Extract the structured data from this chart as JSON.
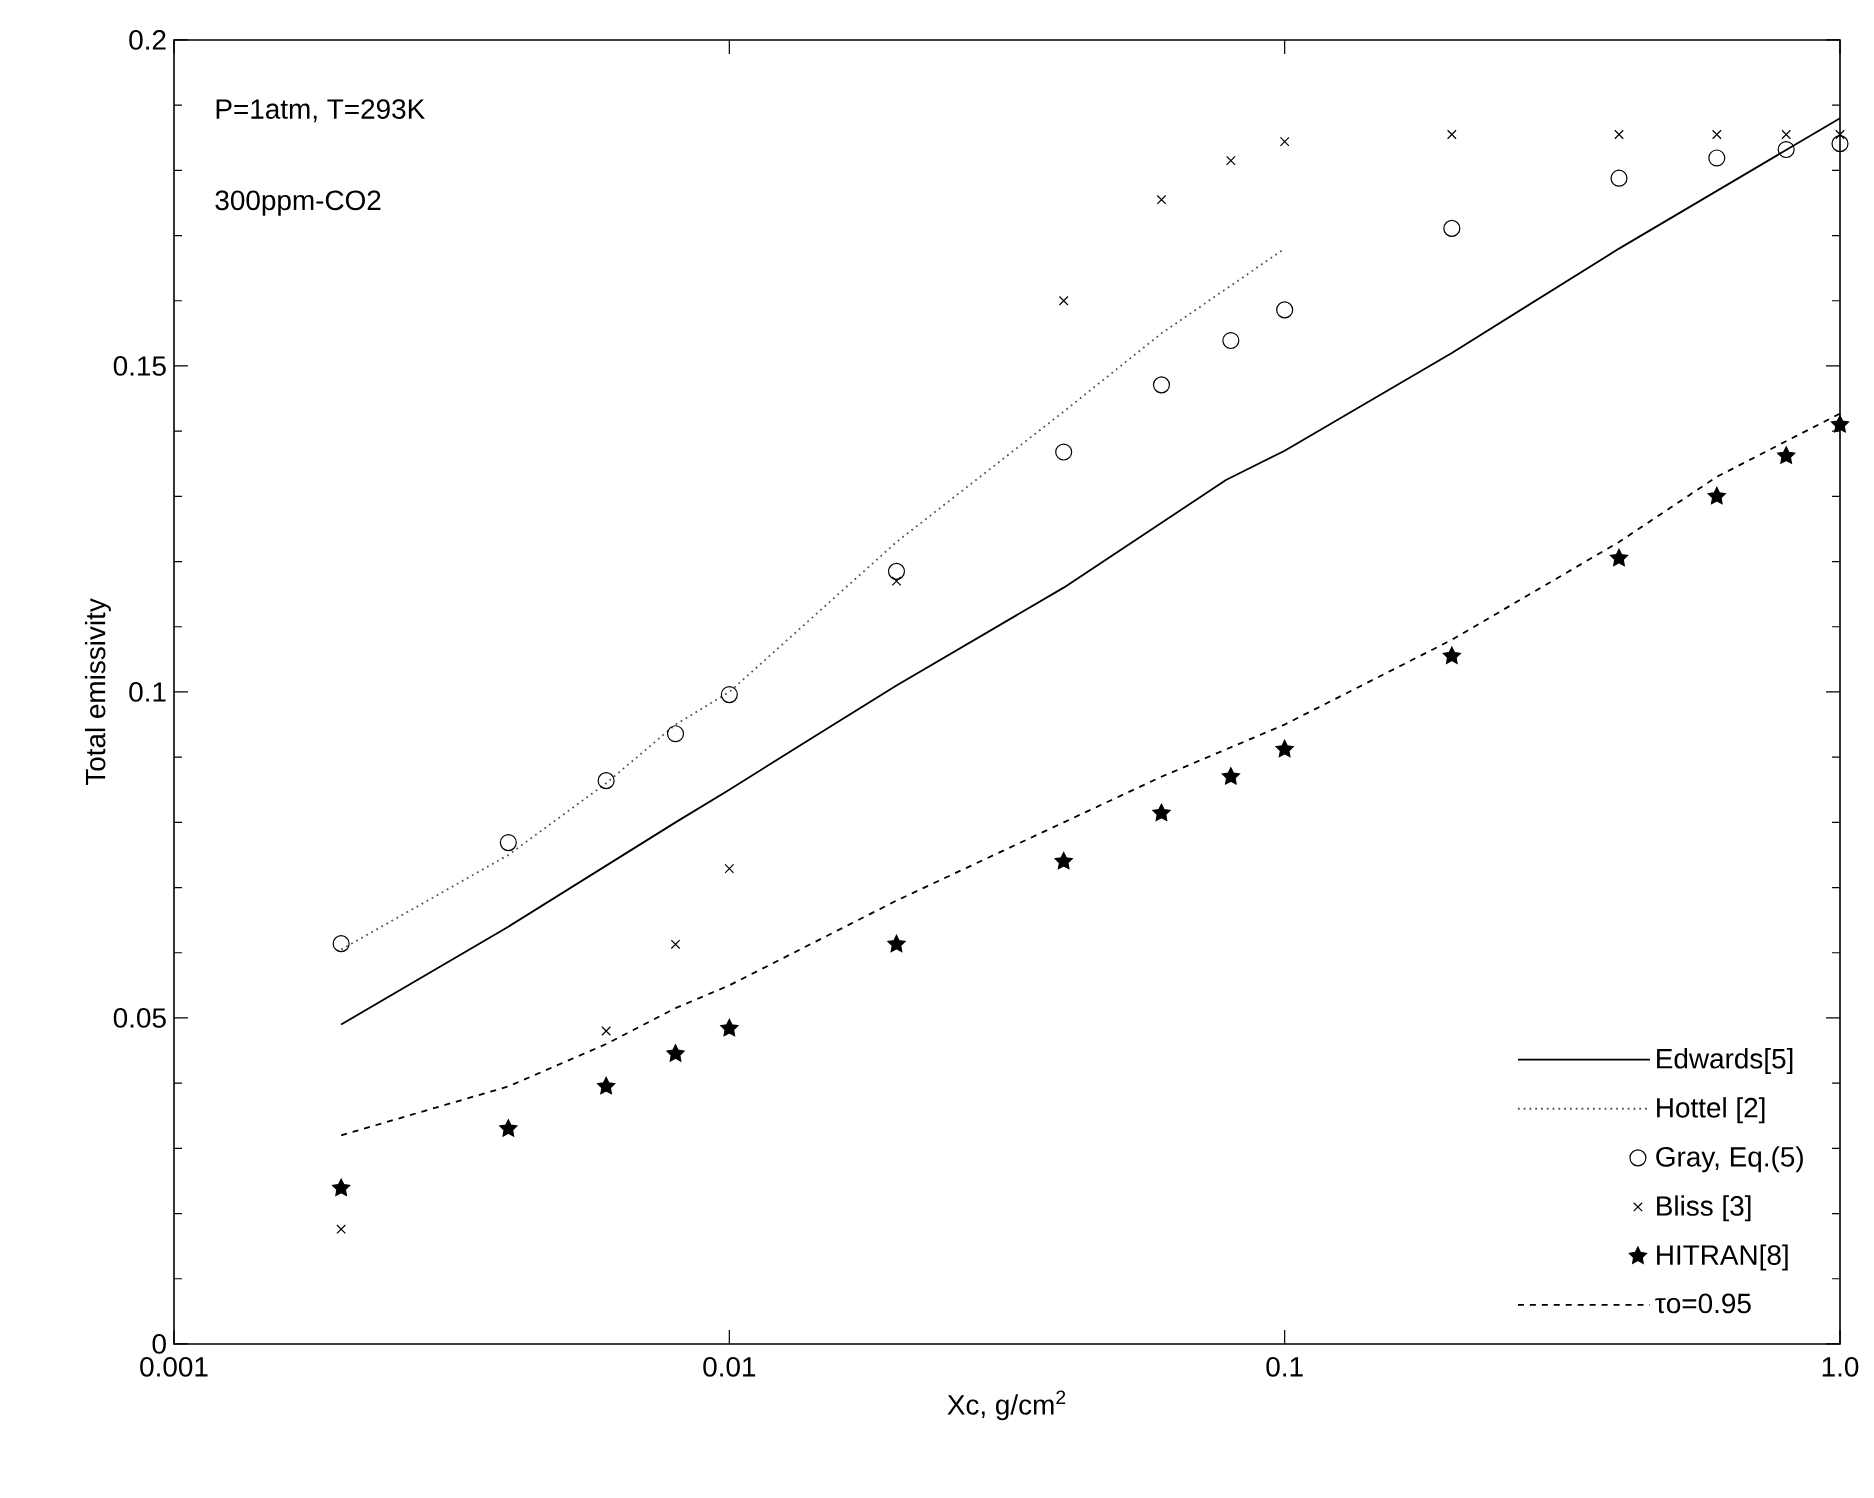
{
  "chart_data": {
    "type": "line",
    "xlabel": "Xc, g/cm$^{2}$",
    "ylabel": "Total emissivity",
    "log": "x",
    "xlim": [
      0.001,
      1
    ],
    "ylim": [
      0,
      0.2
    ],
    "xticks": [
      0.001,
      0.01,
      0.1,
      {
        "value": 1,
        "label": "1.0"
      }
    ],
    "yticks": [
      0,
      0.05,
      0.1,
      0.15,
      0.2
    ],
    "grid": false,
    "legend": "bottom right",
    "annotations": [
      "P=1atm, T=293K",
      "300ppm-CO2"
    ],
    "series": [
      {
        "name": "Edwards[5]",
        "color": "#000000",
        "line_style": "solid",
        "x": [
          0.002,
          0.004,
          0.008,
          0.01,
          0.0134,
          0.02,
          0.04,
          0.0784,
          0.1,
          0.2,
          0.4,
          1
        ],
        "values": [
          0.049,
          0.064,
          0.08,
          0.085,
          0.0918,
          0.101,
          0.116,
          0.1325,
          0.137,
          0.152,
          0.168,
          0.188
        ]
      },
      {
        "name": "Hottel [2]",
        "color": "#555555",
        "line_style": "dotted",
        "x": [
          0.002,
          0.004,
          0.006,
          0.008,
          0.01,
          0.02,
          0.04,
          0.06,
          0.1
        ],
        "values": [
          0.0605,
          0.075,
          0.086,
          0.095,
          0.1,
          0.123,
          0.143,
          0.155,
          0.168
        ]
      },
      {
        "name": "Gray, Eq.(5)",
        "type": "scatter",
        "color": "#000000",
        "marker": "circle",
        "x": [
          0.002,
          0.004,
          0.006,
          0.008,
          0.01,
          0.02,
          0.04,
          0.06,
          0.08,
          0.1,
          0.2,
          0.4,
          0.6,
          0.8,
          1
        ],
        "values": [
          0.0614,
          0.0769,
          0.0864,
          0.0936,
          0.0996,
          0.1185,
          0.1368,
          0.1471,
          0.1539,
          0.1586,
          0.1711,
          0.1788,
          0.1819,
          0.1832,
          0.1841
        ]
      },
      {
        "name": "Bliss [3]",
        "type": "scatter",
        "color": "#000000",
        "marker": "cross",
        "x": [
          0.002,
          0.006,
          0.008,
          0.01,
          0.02,
          0.04,
          0.06,
          0.08,
          0.1,
          0.2,
          0.4,
          0.6,
          0.8,
          1
        ],
        "values": [
          0.0176,
          0.048,
          0.0613,
          0.0729,
          0.117,
          0.16,
          0.1755,
          0.1815,
          0.1844,
          0.1855,
          0.1855,
          0.1855,
          0.1855,
          0.1855
        ]
      },
      {
        "name": "HITRAN[8]",
        "type": "scatter",
        "color": "#000000",
        "marker": "star",
        "x": [
          0.002,
          0.004,
          0.006,
          0.008,
          0.01,
          0.02,
          0.04,
          0.06,
          0.08,
          0.1,
          0.2,
          0.4,
          0.6,
          0.8,
          1
        ],
        "values": [
          0.0239,
          0.033,
          0.0395,
          0.0445,
          0.0484,
          0.0613,
          0.074,
          0.0814,
          0.087,
          0.0912,
          0.1055,
          0.1205,
          0.13,
          0.1362,
          0.141
        ]
      },
      {
        "name": "τo=0.95",
        "color": "#000000",
        "line_style": "dashed",
        "x": [
          0.002,
          0.004,
          0.006,
          0.008,
          0.01,
          0.02,
          0.04,
          0.06,
          0.1,
          0.2,
          0.4,
          0.6,
          1
        ],
        "values": [
          0.032,
          0.0395,
          0.046,
          0.0515,
          0.055,
          0.068,
          0.08,
          0.087,
          0.095,
          0.108,
          0.123,
          0.133,
          0.1427
        ]
      }
    ]
  }
}
